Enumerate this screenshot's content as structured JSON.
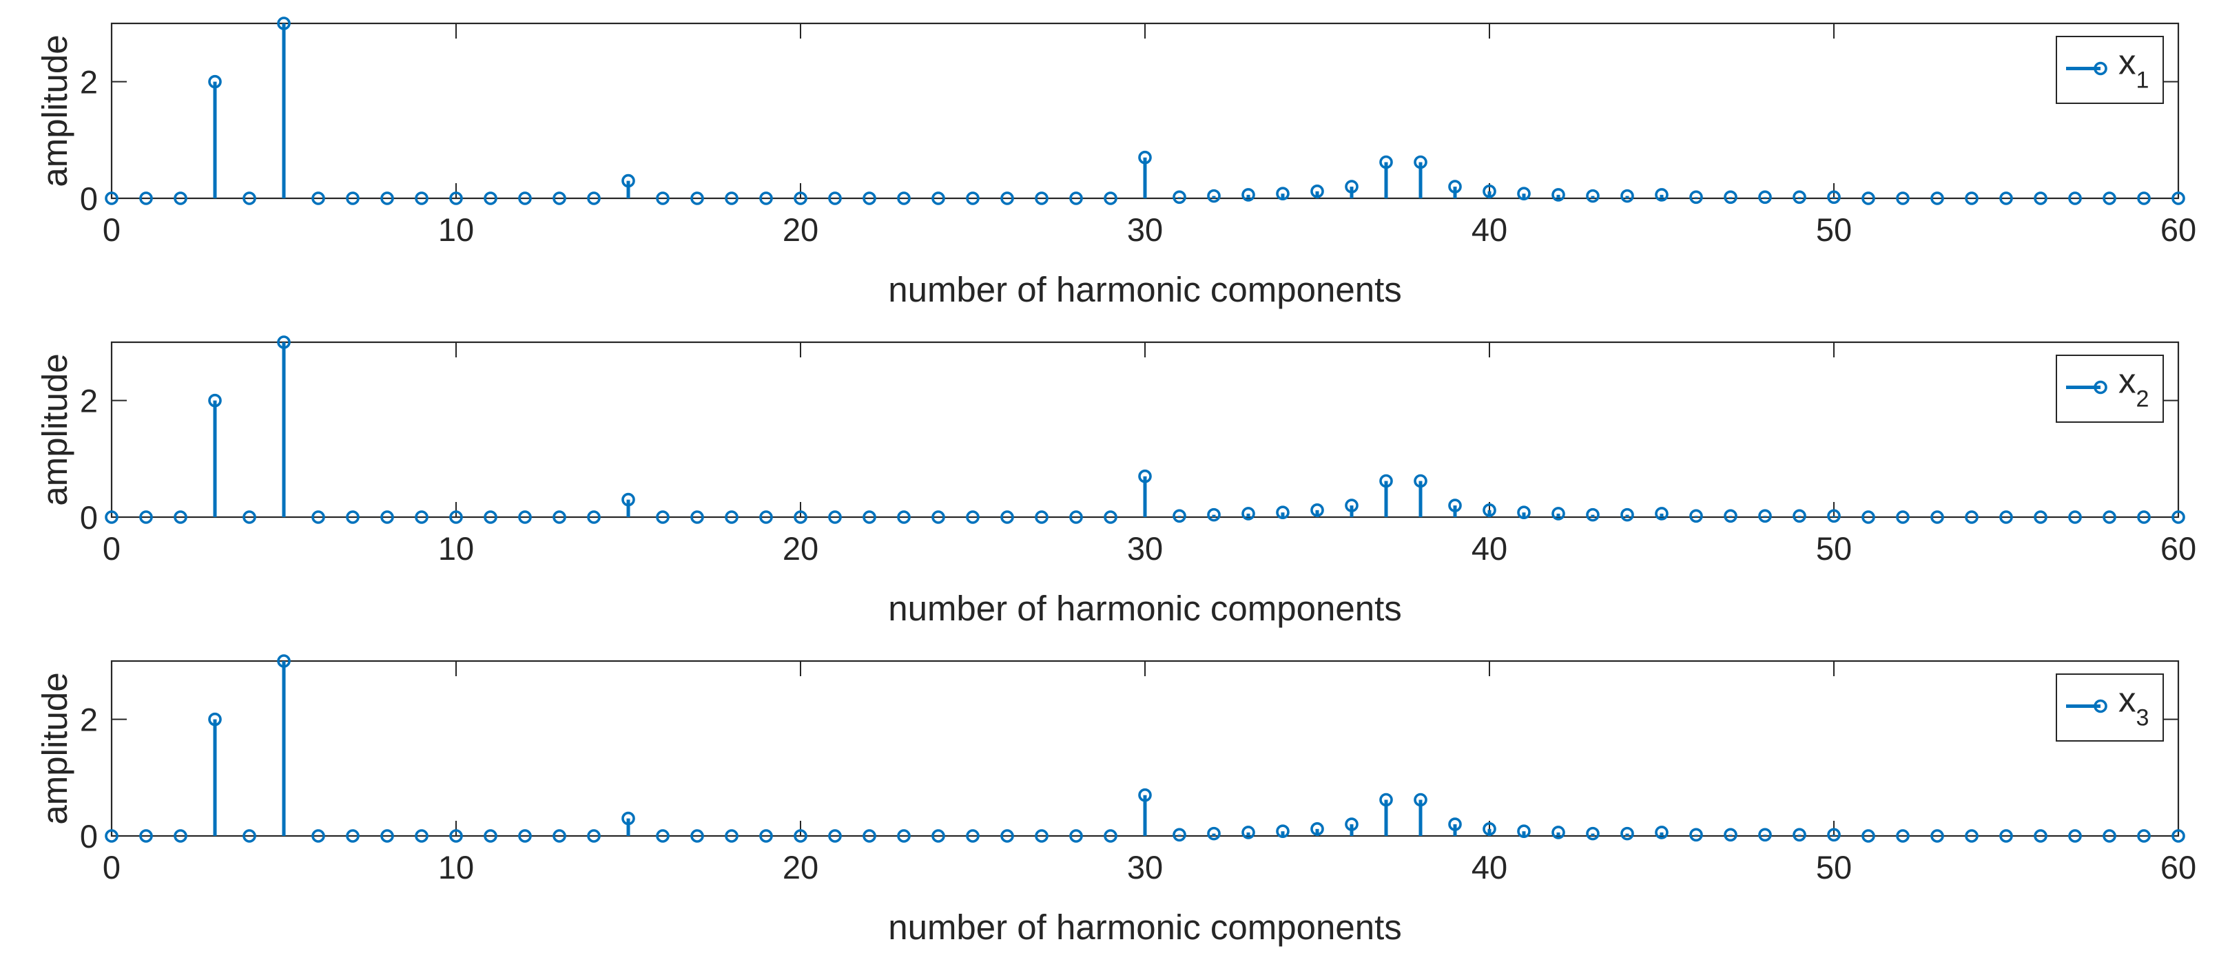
{
  "figure": {
    "background": "#ffffff",
    "axis_color": "#262626",
    "stem_color": "#0072bd"
  },
  "chart_data": [
    {
      "type": "stem",
      "legend": {
        "label": "x",
        "subscript": "1",
        "placement": "top-right"
      },
      "xlabel": "number of harmonic components",
      "ylabel": "amplitude",
      "xlim": [
        0,
        60
      ],
      "ylim": [
        0,
        3
      ],
      "xticks": [
        0,
        10,
        20,
        30,
        40,
        50,
        60
      ],
      "yticks": [
        0,
        2
      ],
      "grid": false,
      "x": [
        0,
        1,
        2,
        3,
        4,
        5,
        6,
        7,
        8,
        9,
        10,
        11,
        12,
        13,
        14,
        15,
        16,
        17,
        18,
        19,
        20,
        21,
        22,
        23,
        24,
        25,
        26,
        27,
        28,
        29,
        30,
        31,
        32,
        33,
        34,
        35,
        36,
        37,
        38,
        39,
        40,
        41,
        42,
        43,
        44,
        45,
        46,
        47,
        48,
        49,
        50,
        51,
        52,
        53,
        54,
        55,
        56,
        57,
        58,
        59,
        60
      ],
      "y": [
        0,
        0,
        0,
        2,
        0,
        3,
        0,
        0,
        0,
        0,
        0,
        0,
        0,
        0,
        0,
        0.3,
        0,
        0,
        0,
        0,
        0,
        0,
        0,
        0,
        0,
        0,
        0,
        0,
        0,
        0,
        0.7,
        0.02,
        0.04,
        0.06,
        0.08,
        0.12,
        0.2,
        0.62,
        0.62,
        0.2,
        0.12,
        0.08,
        0.06,
        0.04,
        0.04,
        0.06,
        0.02,
        0.02,
        0.02,
        0.02,
        0.02,
        0,
        0,
        0,
        0,
        0,
        0,
        0,
        0,
        0,
        0
      ]
    },
    {
      "type": "stem",
      "legend": {
        "label": "x",
        "subscript": "2",
        "placement": "top-right"
      },
      "xlabel": "number of harmonic components",
      "ylabel": "amplitude",
      "xlim": [
        0,
        60
      ],
      "ylim": [
        0,
        3
      ],
      "xticks": [
        0,
        10,
        20,
        30,
        40,
        50,
        60
      ],
      "yticks": [
        0,
        2
      ],
      "grid": false,
      "x": [
        0,
        1,
        2,
        3,
        4,
        5,
        6,
        7,
        8,
        9,
        10,
        11,
        12,
        13,
        14,
        15,
        16,
        17,
        18,
        19,
        20,
        21,
        22,
        23,
        24,
        25,
        26,
        27,
        28,
        29,
        30,
        31,
        32,
        33,
        34,
        35,
        36,
        37,
        38,
        39,
        40,
        41,
        42,
        43,
        44,
        45,
        46,
        47,
        48,
        49,
        50,
        51,
        52,
        53,
        54,
        55,
        56,
        57,
        58,
        59,
        60
      ],
      "y": [
        0,
        0,
        0,
        2,
        0,
        3,
        0,
        0,
        0,
        0,
        0,
        0,
        0,
        0,
        0,
        0.3,
        0,
        0,
        0,
        0,
        0,
        0,
        0,
        0,
        0,
        0,
        0,
        0,
        0,
        0,
        0.7,
        0.02,
        0.04,
        0.06,
        0.08,
        0.12,
        0.2,
        0.62,
        0.62,
        0.2,
        0.12,
        0.08,
        0.06,
        0.04,
        0.04,
        0.06,
        0.02,
        0.02,
        0.02,
        0.02,
        0.02,
        0,
        0,
        0,
        0,
        0,
        0,
        0,
        0,
        0,
        0
      ]
    },
    {
      "type": "stem",
      "legend": {
        "label": "x",
        "subscript": "3",
        "placement": "top-right"
      },
      "xlabel": "number of harmonic components",
      "ylabel": "amplitude",
      "xlim": [
        0,
        60
      ],
      "ylim": [
        0,
        3
      ],
      "xticks": [
        0,
        10,
        20,
        30,
        40,
        50,
        60
      ],
      "yticks": [
        0,
        2
      ],
      "grid": false,
      "x": [
        0,
        1,
        2,
        3,
        4,
        5,
        6,
        7,
        8,
        9,
        10,
        11,
        12,
        13,
        14,
        15,
        16,
        17,
        18,
        19,
        20,
        21,
        22,
        23,
        24,
        25,
        26,
        27,
        28,
        29,
        30,
        31,
        32,
        33,
        34,
        35,
        36,
        37,
        38,
        39,
        40,
        41,
        42,
        43,
        44,
        45,
        46,
        47,
        48,
        49,
        50,
        51,
        52,
        53,
        54,
        55,
        56,
        57,
        58,
        59,
        60
      ],
      "y": [
        0,
        0,
        0,
        2,
        0,
        3,
        0,
        0,
        0,
        0,
        0,
        0,
        0,
        0,
        0,
        0.3,
        0,
        0,
        0,
        0,
        0,
        0,
        0,
        0,
        0,
        0,
        0,
        0,
        0,
        0,
        0.7,
        0.02,
        0.04,
        0.06,
        0.08,
        0.12,
        0.2,
        0.62,
        0.62,
        0.2,
        0.12,
        0.08,
        0.06,
        0.04,
        0.04,
        0.06,
        0.02,
        0.02,
        0.02,
        0.02,
        0.02,
        0,
        0,
        0,
        0,
        0,
        0,
        0,
        0,
        0,
        0
      ]
    }
  ]
}
